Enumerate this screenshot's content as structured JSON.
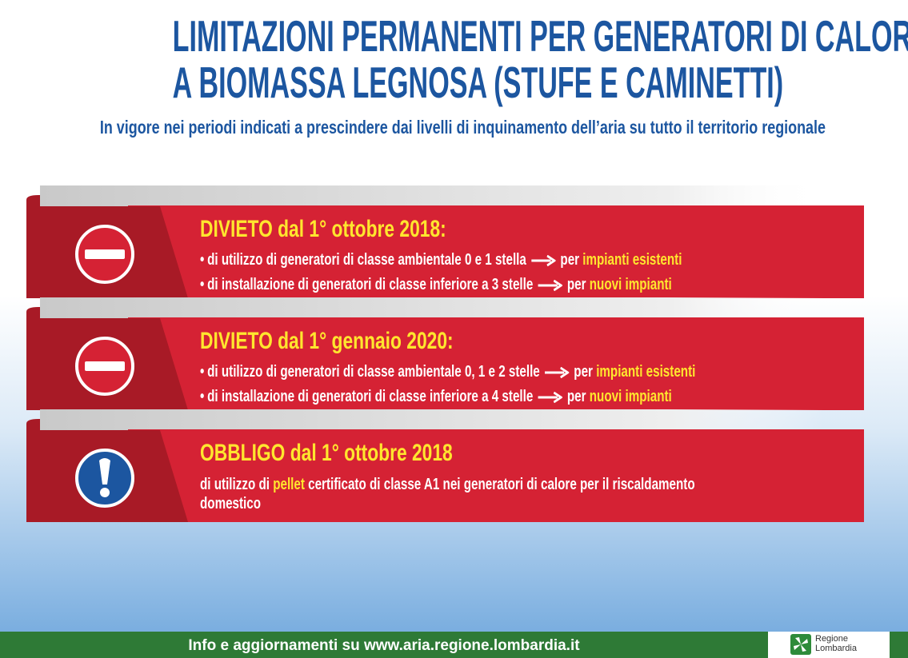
{
  "header": {
    "title_lines": [
      "LIMITAZIONI PERMANENTI PER GENERATORI DI CALORE",
      "A BIOMASSA LEGNOSA (STUFE E CAMINETTI)"
    ],
    "subtitle": "In vigore nei periodi indicati a prescindere dai livelli di inquinamento dell’aria su tutto il territorio regionale"
  },
  "panels": [
    {
      "heading": "DIVIETO dal 1° ottobre 2018:",
      "bullets": [
        {
          "text": "di utilizzo di generatori di classe ambientale 0 e 1 stella",
          "prefix": "per",
          "highlight": "impianti esistenti"
        },
        {
          "text": "di installazione di generatori di classe inferiore a 3 stelle",
          "prefix": "per",
          "highlight": "nuovi impianti"
        }
      ]
    },
    {
      "heading": "DIVIETO dal 1° gennaio 2020:",
      "bullets": [
        {
          "text": "di utilizzo di generatori di classe ambientale 0, 1 e 2 stelle",
          "prefix": "per",
          "highlight": "impianti esistenti"
        },
        {
          "text": "di installazione di generatori di classe inferiore a 4 stelle",
          "prefix": "per",
          "highlight": "nuovi impianti"
        }
      ]
    },
    {
      "heading": "OBBLIGO dal 1° ottobre 2018",
      "body": {
        "before": "di utilizzo di",
        "highlight": "pellet",
        "after": "certificato di classe A1 nei generatori di calore per il riscaldamento domestico"
      }
    }
  ],
  "footer": {
    "text": "Info e aggiornamenti su www.aria.regione.lombardia.it",
    "logo": [
      "Regione",
      "Lombardia"
    ]
  }
}
